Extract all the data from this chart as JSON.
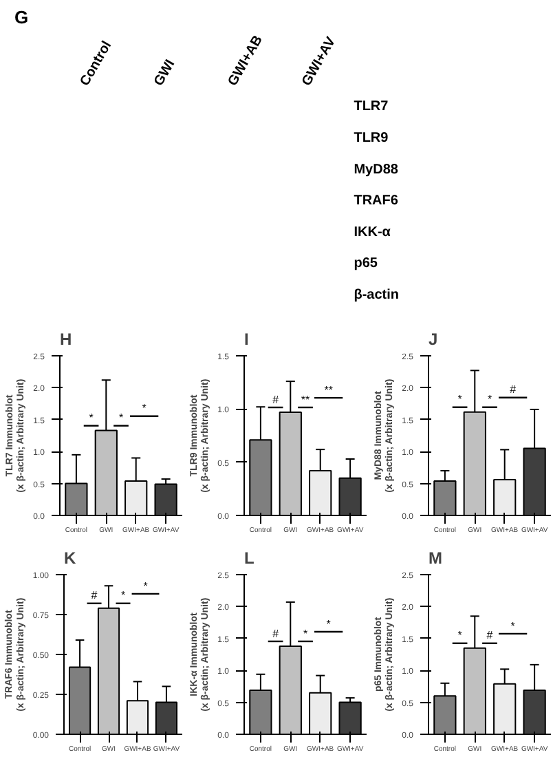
{
  "chart_data": [
    {
      "type": "other",
      "title": "G",
      "categories": [
        "Control",
        "GWI",
        "GWI+AB",
        "GWI+AV"
      ],
      "annotations": [
        "TLR7",
        "TLR9",
        "MyD88",
        "TRAF6",
        "IKK-α",
        "p65",
        "β-actin"
      ]
    },
    {
      "type": "bar",
      "title": "H",
      "ylabel": "TLR7 Immunoblot\n(x β-actin; Arbitrary Unit)",
      "categories": [
        "Control",
        "GWI",
        "GWI+AB",
        "GWI+AV"
      ],
      "values": [
        0.5,
        1.33,
        0.54,
        0.49
      ],
      "errors": [
        [
          0.5,
          0.95
        ],
        [
          1.33,
          2.12
        ],
        [
          0.54,
          0.9
        ],
        [
          0.49,
          0.57
        ]
      ],
      "colors": [
        "#7f7f7f",
        "#c0c0c0",
        "#ececec",
        "#3f3f3f"
      ],
      "ylim": [
        0,
        2.5
      ],
      "yticks": [
        {
          "value": 0,
          "label": "0.0"
        },
        {
          "value": 0.5,
          "label": "0.5"
        },
        {
          "value": 1,
          "label": "1.0"
        },
        {
          "value": 1.5,
          "label": "1.5"
        },
        {
          "value": 2,
          "label": "2.0"
        },
        {
          "value": 2.5,
          "label": "2.5"
        }
      ],
      "annotations": [
        "*",
        "*",
        "*"
      ]
    },
    {
      "type": "bar",
      "title": "I",
      "ylabel": "TLR9 Immunoblot\n(x β-actin; Arbitrary Unit)",
      "categories": [
        "Control",
        "GWI",
        "GWI+AB",
        "GWI+AV"
      ],
      "values": [
        0.71,
        0.97,
        0.42,
        0.35
      ],
      "errors": [
        [
          0.71,
          1.02
        ],
        [
          0.97,
          1.26
        ],
        [
          0.42,
          0.62
        ],
        [
          0.35,
          0.53
        ]
      ],
      "colors": [
        "#7f7f7f",
        "#c0c0c0",
        "#ececec",
        "#3f3f3f"
      ],
      "ylim": [
        0,
        1.5
      ],
      "yticks": [
        {
          "value": 0,
          "label": "0.0"
        },
        {
          "value": 0.5,
          "label": "0.5"
        },
        {
          "value": 1,
          "label": "1.0"
        },
        {
          "value": 1.5,
          "label": "1.5"
        }
      ],
      "annotations": [
        "#",
        "**",
        "**"
      ]
    },
    {
      "type": "bar",
      "title": "J",
      "ylabel": "MyD88 Immunoblot\n(x β-actin; Arbitrary Unit)",
      "categories": [
        "Control",
        "GWI",
        "GWI+AB",
        "GWI+AV"
      ],
      "values": [
        0.54,
        1.62,
        0.56,
        1.05
      ],
      "errors": [
        [
          0.54,
          0.7
        ],
        [
          1.62,
          2.27
        ],
        [
          0.56,
          1.03
        ],
        [
          1.05,
          1.66
        ]
      ],
      "colors": [
        "#7f7f7f",
        "#c0c0c0",
        "#ececec",
        "#3f3f3f"
      ],
      "ylim": [
        0,
        2.5
      ],
      "yticks": [
        {
          "value": 0,
          "label": "0.0"
        },
        {
          "value": 0.5,
          "label": "0.5"
        },
        {
          "value": 1,
          "label": "1.0"
        },
        {
          "value": 1.5,
          "label": "1.5"
        },
        {
          "value": 2,
          "label": "2.0"
        },
        {
          "value": 2.5,
          "label": "2.5"
        }
      ],
      "annotations": [
        "*",
        "*",
        "#"
      ]
    },
    {
      "type": "bar",
      "title": "K",
      "ylabel": "TRAF6 Immunoblot\n(x β-actin; Arbitrary Unit)",
      "categories": [
        "Control",
        "GWI",
        "GWI+AB",
        "GWI+AV"
      ],
      "values": [
        0.42,
        0.79,
        0.21,
        0.2
      ],
      "errors": [
        [
          0.42,
          0.59
        ],
        [
          0.79,
          0.93
        ],
        [
          0.21,
          0.33
        ],
        [
          0.2,
          0.3
        ]
      ],
      "colors": [
        "#7f7f7f",
        "#c0c0c0",
        "#ececec",
        "#3f3f3f"
      ],
      "ylim": [
        0,
        1
      ],
      "yticks": [
        {
          "value": 0,
          "label": "0.00"
        },
        {
          "value": 0.25,
          "label": "0.25"
        },
        {
          "value": 0.5,
          "label": "0.50"
        },
        {
          "value": 0.75,
          "label": "0.75"
        },
        {
          "value": 1,
          "label": "1.00"
        }
      ],
      "annotations": [
        "#",
        "*",
        "*"
      ]
    },
    {
      "type": "bar",
      "title": "L",
      "ylabel": "IKK-α Immunoblot\n(x β-actin; Arbitrary Unit)",
      "categories": [
        "Control",
        "GWI",
        "GWI+AB",
        "GWI+AV"
      ],
      "values": [
        0.69,
        1.38,
        0.65,
        0.5
      ],
      "errors": [
        [
          0.69,
          0.94
        ],
        [
          1.38,
          2.07
        ],
        [
          0.65,
          0.92
        ],
        [
          0.5,
          0.57
        ]
      ],
      "colors": [
        "#7f7f7f",
        "#c0c0c0",
        "#ececec",
        "#3f3f3f"
      ],
      "ylim": [
        0,
        2.5
      ],
      "yticks": [
        {
          "value": 0,
          "label": "0.0"
        },
        {
          "value": 0.5,
          "label": "0.5"
        },
        {
          "value": 1,
          "label": "1.0"
        },
        {
          "value": 1.5,
          "label": "1.5"
        },
        {
          "value": 2,
          "label": "2.0"
        },
        {
          "value": 2.5,
          "label": "2.5"
        }
      ],
      "annotations": [
        "#",
        "*",
        "*"
      ]
    },
    {
      "type": "bar",
      "title": "M",
      "ylabel": "p65 Immunoblot\n(x β-actin; Arbitrary Unit)",
      "categories": [
        "Control",
        "GWI",
        "GWI+AB",
        "GWI+AV"
      ],
      "values": [
        0.6,
        1.35,
        0.79,
        0.69
      ],
      "errors": [
        [
          0.6,
          0.8
        ],
        [
          1.35,
          1.85
        ],
        [
          0.79,
          1.02
        ],
        [
          0.69,
          1.09
        ]
      ],
      "colors": [
        "#7f7f7f",
        "#c0c0c0",
        "#ececec",
        "#3f3f3f"
      ],
      "ylim": [
        0,
        2.5
      ],
      "yticks": [
        {
          "value": 0,
          "label": "0.0"
        },
        {
          "value": 0.5,
          "label": "0.5"
        },
        {
          "value": 1,
          "label": "1.0"
        },
        {
          "value": 1.5,
          "label": "1.5"
        },
        {
          "value": 2,
          "label": "2.0"
        },
        {
          "value": 2.5,
          "label": "2.5"
        }
      ],
      "annotations": [
        "*",
        "#",
        "*"
      ]
    }
  ]
}
